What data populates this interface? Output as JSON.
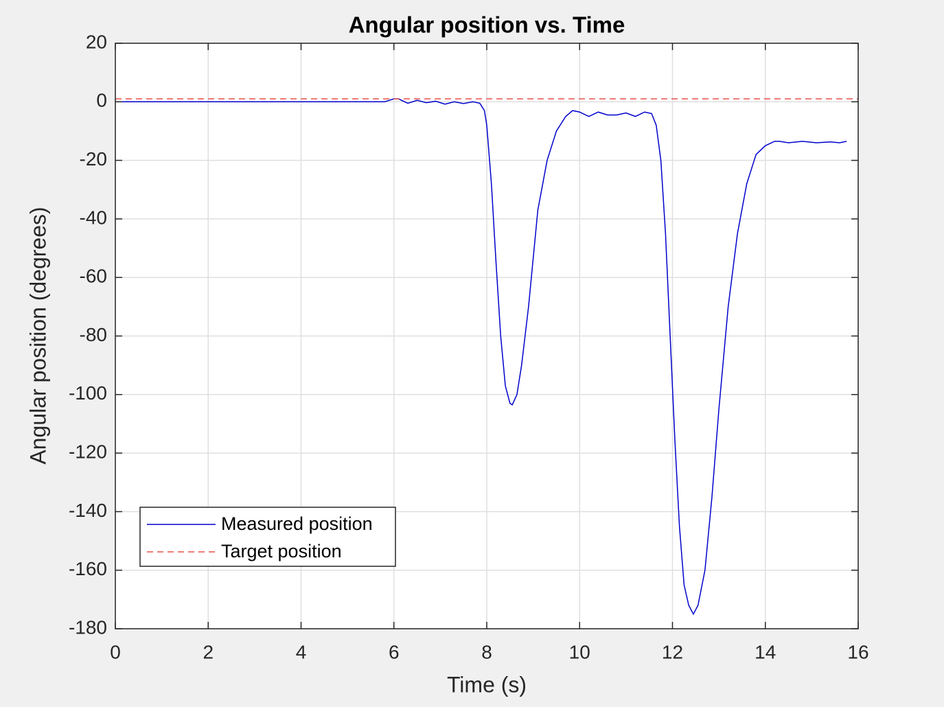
{
  "chart_data": {
    "type": "line",
    "title": "Angular position vs. Time",
    "x_label": "Time (s)",
    "y_label": "Angular position (degrees)",
    "xlim": [
      0,
      16
    ],
    "xticks": [
      0,
      2,
      4,
      6,
      8,
      10,
      12,
      14,
      16
    ],
    "ylim": [
      -180,
      20
    ],
    "yticks": [
      -180,
      -160,
      -140,
      -120,
      -100,
      -80,
      -60,
      -40,
      -20,
      0,
      20
    ],
    "grid": true,
    "legend": "lower left",
    "series": [
      {
        "name": "Measured position",
        "color": "#0000cc",
        "dash": "solid",
        "x": [
          0,
          5.8,
          6.0,
          6.1,
          6.3,
          6.5,
          6.7,
          6.9,
          7.1,
          7.3,
          7.5,
          7.7,
          7.85,
          7.95,
          8.0,
          8.1,
          8.2,
          8.3,
          8.4,
          8.5,
          8.55,
          8.65,
          8.75,
          8.9,
          9.1,
          9.3,
          9.5,
          9.7,
          9.85,
          10.0,
          10.2,
          10.4,
          10.6,
          10.8,
          11.0,
          11.2,
          11.4,
          11.55,
          11.65,
          11.75,
          11.85,
          11.95,
          12.05,
          12.15,
          12.25,
          12.35,
          12.45,
          12.55,
          12.7,
          12.85,
          13.0,
          13.2,
          13.4,
          13.6,
          13.8,
          14.0,
          14.2,
          14.3,
          14.5,
          14.8,
          15.1,
          15.4,
          15.6,
          15.75
        ],
        "values": [
          0,
          0,
          1,
          1,
          -0.5,
          0.5,
          -0.3,
          0.2,
          -0.8,
          0,
          -0.6,
          0,
          -0.5,
          -3,
          -8,
          -28,
          -55,
          -80,
          -97,
          -103,
          -103.5,
          -100,
          -90,
          -70,
          -37,
          -20,
          -10,
          -5,
          -3,
          -3.5,
          -5,
          -3.5,
          -4.5,
          -4.5,
          -3.8,
          -5,
          -3.5,
          -4,
          -8,
          -20,
          -45,
          -80,
          -115,
          -145,
          -165,
          -172,
          -175,
          -172,
          -160,
          -135,
          -105,
          -70,
          -45,
          -28,
          -18,
          -15,
          -13.5,
          -13.5,
          -14,
          -13.5,
          -14,
          -13.7,
          -14,
          -13.5
        ]
      },
      {
        "name": "Target position",
        "color": "#e8504a",
        "dash": "dashed",
        "x": [
          0,
          16
        ],
        "values": [
          1,
          1
        ]
      }
    ]
  }
}
